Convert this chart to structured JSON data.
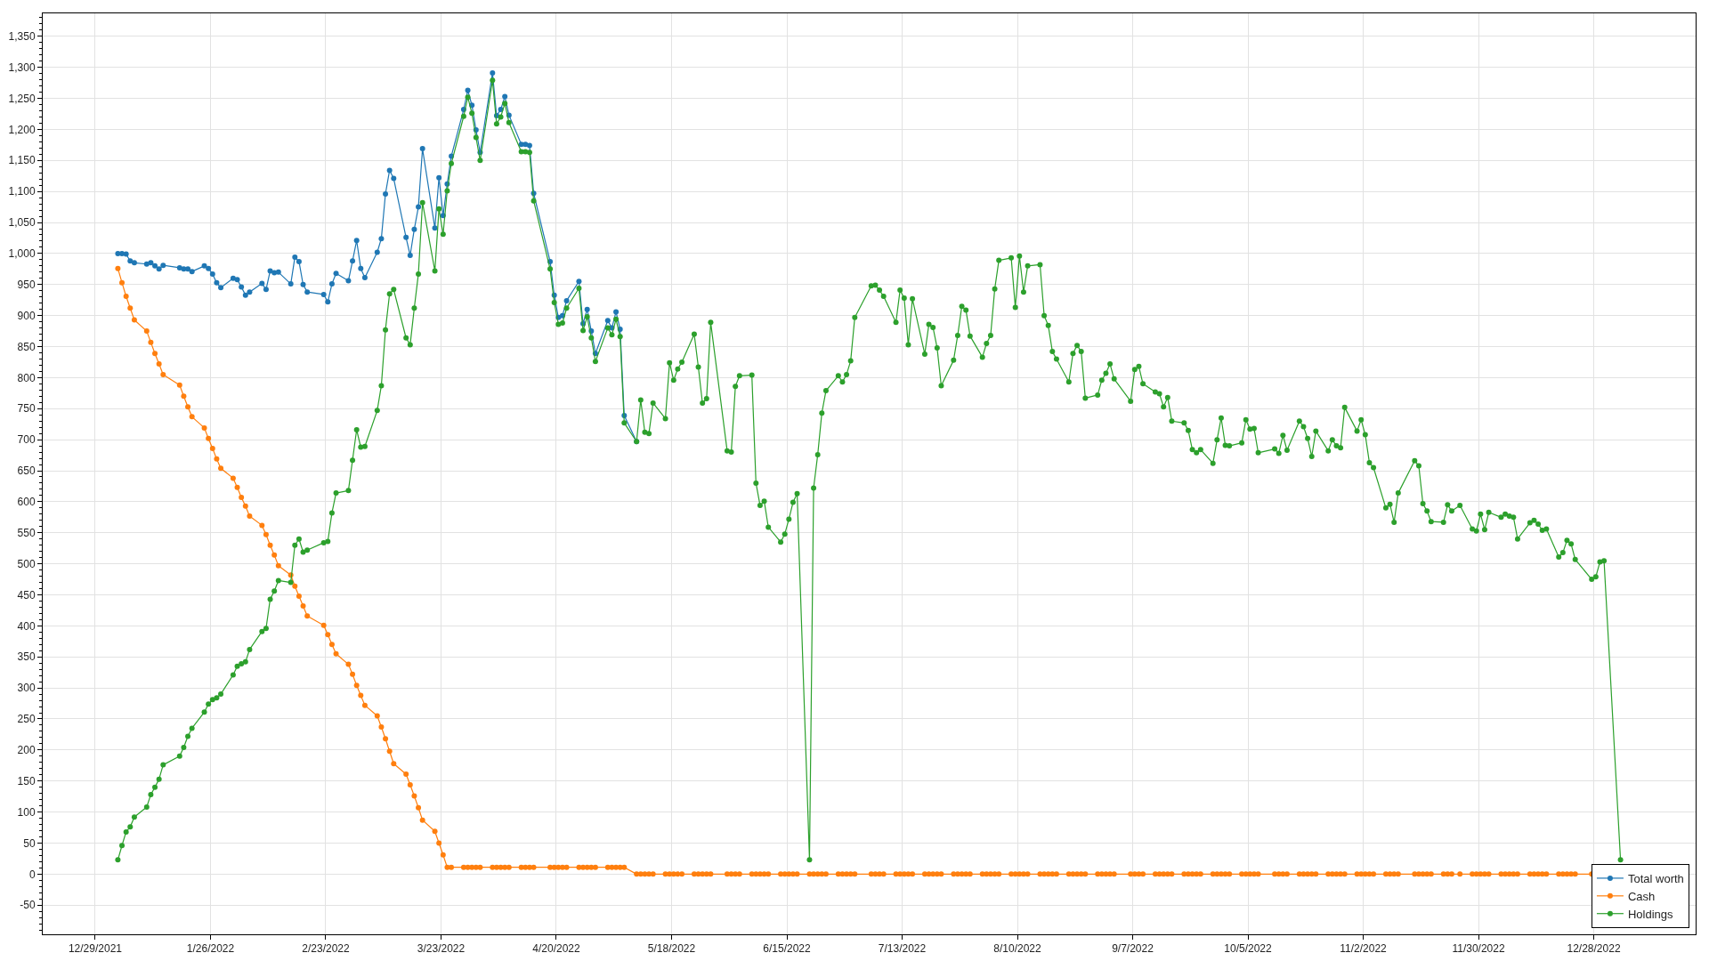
{
  "chart_data": {
    "type": "line",
    "x": [
      "2022-01-03T12:00",
      "2022-01-04T12:00",
      "2022-01-05T12:00",
      "2022-01-06T12:00",
      "2022-01-07T12:00",
      "2022-01-10T12:00",
      "2022-01-11T12:00",
      "2022-01-12T12:00",
      "2022-01-13T12:00",
      "2022-01-14T12:00",
      "2022-01-18T12:00",
      "2022-01-19T12:00",
      "2022-01-20T12:00",
      "2022-01-21T12:00",
      "2022-01-24T12:00",
      "2022-01-25T12:00",
      "2022-01-26T12:00",
      "2022-01-27T12:00",
      "2022-01-28T12:00",
      "2022-01-31T12:00",
      "2022-02-01T12:00",
      "2022-02-02T12:00",
      "2022-02-03T12:00",
      "2022-02-04T12:00",
      "2022-02-07T12:00",
      "2022-02-08T12:00",
      "2022-02-09T12:00",
      "2022-02-10T12:00",
      "2022-02-11T12:00",
      "2022-02-14T12:00",
      "2022-02-15T12:00",
      "2022-02-16T12:00",
      "2022-02-17T12:00",
      "2022-02-18T12:00",
      "2022-02-22T12:00",
      "2022-02-23T12:00",
      "2022-02-24T12:00",
      "2022-02-25T12:00",
      "2022-02-28T12:00",
      "2022-03-01T12:00",
      "2022-03-02T12:00",
      "2022-03-03T12:00",
      "2022-03-04T12:00",
      "2022-03-07T12:00",
      "2022-03-08T12:00",
      "2022-03-09T12:00",
      "2022-03-10T12:00",
      "2022-03-11T12:00",
      "2022-03-14T12:00",
      "2022-03-15T12:00",
      "2022-03-16T12:00",
      "2022-03-17T12:00",
      "2022-03-18T12:00",
      "2022-03-21T12:00",
      "2022-03-22T12:00",
      "2022-03-23T12:00",
      "2022-03-24T12:00",
      "2022-03-25T12:00",
      "2022-03-28T12:00",
      "2022-03-29T12:00",
      "2022-03-30T12:00",
      "2022-03-31T12:00",
      "2022-04-01T12:00",
      "2022-04-04T12:00",
      "2022-04-05T12:00",
      "2022-04-06T12:00",
      "2022-04-07T12:00",
      "2022-04-08T12:00",
      "2022-04-11T12:00",
      "2022-04-12T12:00",
      "2022-04-13T12:00",
      "2022-04-14T12:00",
      "2022-04-18T12:00",
      "2022-04-19T12:00",
      "2022-04-20T12:00",
      "2022-04-21T12:00",
      "2022-04-22T12:00",
      "2022-04-25T12:00",
      "2022-04-26T12:00",
      "2022-04-27T12:00",
      "2022-04-28T12:00",
      "2022-04-29T12:00",
      "2022-05-02T12:00",
      "2022-05-03T12:00",
      "2022-05-04T12:00",
      "2022-05-05T12:00",
      "2022-05-06T12:00",
      "2022-05-09T12:00",
      "2022-05-10T12:00",
      "2022-05-11T12:00",
      "2022-05-12T12:00",
      "2022-05-13T12:00",
      "2022-05-16T12:00",
      "2022-05-17T12:00",
      "2022-05-18T12:00",
      "2022-05-19T12:00",
      "2022-05-20T12:00",
      "2022-05-23T12:00",
      "2022-05-24T12:00",
      "2022-05-25T12:00",
      "2022-05-26T12:00",
      "2022-05-27T12:00",
      "2022-05-31T12:00",
      "2022-06-01T12:00",
      "2022-06-02T12:00",
      "2022-06-03T12:00",
      "2022-06-06T12:00",
      "2022-06-07T12:00",
      "2022-06-08T12:00",
      "2022-06-09T12:00",
      "2022-06-10T12:00",
      "2022-06-13T12:00",
      "2022-06-14T12:00",
      "2022-06-15T12:00",
      "2022-06-16T12:00",
      "2022-06-17T12:00",
      "2022-06-20T12:00",
      "2022-06-21T12:00",
      "2022-06-22T12:00",
      "2022-06-23T12:00",
      "2022-06-24T12:00",
      "2022-06-27T12:00",
      "2022-06-28T12:00",
      "2022-06-29T12:00",
      "2022-06-30T12:00",
      "2022-07-01T12:00",
      "2022-07-05T12:00",
      "2022-07-06T12:00",
      "2022-07-07T12:00",
      "2022-07-08T12:00",
      "2022-07-11T12:00",
      "2022-07-12T12:00",
      "2022-07-13T12:00",
      "2022-07-14T12:00",
      "2022-07-15T12:00",
      "2022-07-18T12:00",
      "2022-07-19T12:00",
      "2022-07-20T12:00",
      "2022-07-21T12:00",
      "2022-07-22T12:00",
      "2022-07-25T12:00",
      "2022-07-26T12:00",
      "2022-07-27T12:00",
      "2022-07-28T12:00",
      "2022-07-29T12:00",
      "2022-08-01T12:00",
      "2022-08-02T12:00",
      "2022-08-03T12:00",
      "2022-08-04T12:00",
      "2022-08-05T12:00",
      "2022-08-08T12:00",
      "2022-08-09T12:00",
      "2022-08-10T12:00",
      "2022-08-11T12:00",
      "2022-08-12T12:00",
      "2022-08-15T12:00",
      "2022-08-16T12:00",
      "2022-08-17T12:00",
      "2022-08-18T12:00",
      "2022-08-19T12:00",
      "2022-08-22T12:00",
      "2022-08-23T12:00",
      "2022-08-24T12:00",
      "2022-08-25T12:00",
      "2022-08-26T12:00",
      "2022-08-29T12:00",
      "2022-08-30T12:00",
      "2022-08-31T12:00",
      "2022-09-01T12:00",
      "2022-09-02T12:00",
      "2022-09-06T12:00",
      "2022-09-07T12:00",
      "2022-09-08T12:00",
      "2022-09-09T12:00",
      "2022-09-12T12:00",
      "2022-09-13T12:00",
      "2022-09-14T12:00",
      "2022-09-15T12:00",
      "2022-09-16T12:00",
      "2022-09-19T12:00",
      "2022-09-20T12:00",
      "2022-09-21T12:00",
      "2022-09-22T12:00",
      "2022-09-23T12:00",
      "2022-09-26T12:00",
      "2022-09-27T12:00",
      "2022-09-28T12:00",
      "2022-09-29T12:00",
      "2022-09-30T12:00",
      "2022-10-03T12:00",
      "2022-10-04T12:00",
      "2022-10-05T12:00",
      "2022-10-06T12:00",
      "2022-10-07T12:00",
      "2022-10-11T12:00",
      "2022-10-12T12:00",
      "2022-10-13T12:00",
      "2022-10-14T12:00",
      "2022-10-17T12:00",
      "2022-10-18T12:00",
      "2022-10-19T12:00",
      "2022-10-20T12:00",
      "2022-10-21T12:00",
      "2022-10-24T12:00",
      "2022-10-25T12:00",
      "2022-10-26T12:00",
      "2022-10-27T12:00",
      "2022-10-28T12:00",
      "2022-10-31T12:00",
      "2022-11-01T12:00",
      "2022-11-02T12:00",
      "2022-11-03T12:00",
      "2022-11-04T12:00",
      "2022-11-07T12:00",
      "2022-11-08T12:00",
      "2022-11-09T12:00",
      "2022-11-10T12:00",
      "2022-11-14T12:00",
      "2022-11-15T12:00",
      "2022-11-16T12:00",
      "2022-11-17T12:00",
      "2022-11-18T12:00",
      "2022-11-21T12:00",
      "2022-11-22T12:00",
      "2022-11-23T12:00",
      "2022-11-25T12:00",
      "2022-11-28T12:00",
      "2022-11-29T12:00",
      "2022-11-30T12:00",
      "2022-12-01T12:00",
      "2022-12-02T12:00",
      "2022-12-05T12:00",
      "2022-12-06T12:00",
      "2022-12-07T12:00",
      "2022-12-08T12:00",
      "2022-12-09T12:00",
      "2022-12-12T12:00",
      "2022-12-13T12:00",
      "2022-12-14T12:00",
      "2022-12-15T12:00",
      "2022-12-16T12:00",
      "2022-12-19T12:00",
      "2022-12-20T12:00",
      "2022-12-21T12:00",
      "2022-12-22T12:00",
      "2022-12-23T12:00",
      "2022-12-27T12:00",
      "2022-12-28T12:00",
      "2022-12-29T12:00",
      "2022-12-30T12:00",
      "2023-01-03T12:00"
    ],
    "series": [
      {
        "name": "Total worth",
        "color": "#1f77b4",
        "values": [
          1000,
          1000,
          999,
          988,
          985,
          983,
          985,
          980,
          975,
          981,
          977,
          975,
          975,
          971,
          980,
          976,
          967,
          953,
          945,
          960,
          958,
          946,
          933,
          938,
          952,
          942,
          972,
          969,
          970,
          951,
          994,
          987,
          950,
          938,
          934,
          922,
          951,
          968,
          956,
          988,
          1021,
          976,
          961,
          1002,
          1024,
          1096,
          1134,
          1121,
          1026,
          997,
          1039,
          1075,
          1169,
          1041,
          1122,
          1061,
          1112,
          1157,
          1232,
          1263,
          1239,
          1199,
          1163,
          1291,
          1222,
          1232,
          1253,
          1223,
          1176,
          1176,
          1174,
          1097,
          987,
          933,
          897,
          900,
          924,
          955,
          887,
          910,
          875,
          839,
          892,
          880,
          906,
          878,
          739,
          697,
          null,
          null,
          null,
          null,
          null,
          null,
          null,
          null,
          null,
          null,
          null,
          null,
          null,
          null,
          null,
          null,
          null,
          null,
          null,
          null,
          null,
          null,
          null,
          null,
          null,
          null,
          null,
          null,
          null,
          null,
          null,
          null,
          null,
          null,
          null,
          null,
          null,
          null,
          null,
          null,
          null,
          null,
          null,
          null,
          null,
          null,
          null,
          null,
          null,
          null,
          null,
          null,
          null,
          null,
          null,
          null,
          null,
          null,
          null,
          null,
          null,
          null,
          null,
          null,
          null,
          null,
          null,
          null,
          null,
          null,
          null,
          null,
          null,
          null,
          null,
          null,
          null,
          null,
          null,
          null,
          null,
          null,
          null,
          null,
          null,
          null,
          null,
          null,
          null,
          null,
          null,
          null,
          null,
          null,
          null,
          null,
          null,
          null,
          null,
          null,
          null,
          null,
          null,
          null,
          null,
          null,
          null,
          null,
          null,
          null,
          null,
          null,
          null,
          null,
          null,
          null,
          null,
          null,
          null,
          null,
          null,
          null,
          null,
          null,
          null,
          null,
          null,
          null,
          null,
          null,
          null,
          null,
          null,
          null,
          null,
          null,
          null,
          null,
          null,
          null,
          null,
          null,
          null,
          null,
          null,
          null,
          null,
          null,
          null,
          null,
          null,
          null,
          null,
          null,
          null,
          null,
          null,
          null,
          null,
          null,
          null,
          null,
          null
        ]
      },
      {
        "name": "Cash",
        "color": "#ff7f0e",
        "values": [
          976,
          953,
          931,
          912,
          893,
          875,
          857,
          839,
          822,
          805,
          788,
          770,
          753,
          737,
          719,
          702,
          686,
          669,
          654,
          638,
          623,
          607,
          593,
          577,
          562,
          547,
          530,
          514,
          497,
          482,
          464,
          448,
          432,
          416,
          401,
          386,
          370,
          355,
          338,
          322,
          304,
          288,
          272,
          255,
          237,
          218,
          198,
          178,
          161,
          144,
          126,
          107,
          87,
          69,
          50,
          31,
          11,
          11,
          11,
          11,
          11,
          11,
          11,
          11,
          11,
          11,
          11,
          11,
          11,
          11,
          11,
          11,
          11,
          11,
          11,
          11,
          11,
          11,
          11,
          11,
          11,
          11,
          11,
          11,
          11,
          11,
          11,
          0,
          0,
          0,
          0,
          0,
          0,
          0,
          0,
          0,
          0,
          0,
          0,
          0,
          0,
          0,
          0,
          0,
          0,
          0,
          0,
          0,
          0,
          0,
          0,
          0,
          0,
          0,
          0,
          0,
          0,
          0,
          0,
          0,
          0,
          0,
          0,
          0,
          0,
          0,
          0,
          0,
          0,
          0,
          0,
          0,
          0,
          0,
          0,
          0,
          0,
          0,
          0,
          0,
          0,
          0,
          0,
          0,
          0,
          0,
          0,
          0,
          0,
          0,
          0,
          0,
          0,
          0,
          0,
          0,
          0,
          0,
          0,
          0,
          0,
          0,
          0,
          0,
          0,
          0,
          0,
          0,
          0,
          0,
          0,
          0,
          0,
          0,
          0,
          0,
          0,
          0,
          0,
          0,
          0,
          0,
          0,
          0,
          0,
          0,
          0,
          0,
          0,
          0,
          0,
          0,
          0,
          0,
          0,
          0,
          0,
          0,
          0,
          0,
          0,
          0,
          0,
          0,
          0,
          0,
          0,
          0,
          0,
          0,
          0,
          0,
          0,
          0,
          0,
          0,
          0,
          0,
          0,
          0,
          0,
          0,
          0,
          0,
          0,
          0,
          0,
          0,
          0,
          0,
          0,
          0,
          0,
          0,
          0,
          0,
          0,
          0,
          0,
          0,
          0,
          0,
          0,
          0,
          0,
          0,
          0,
          null,
          null,
          null,
          null
        ]
      },
      {
        "name": "Holdings",
        "color": "#2ca02c",
        "values": [
          23,
          46,
          68,
          76,
          92,
          108,
          128,
          140,
          153,
          176,
          190,
          204,
          222,
          235,
          261,
          274,
          281,
          284,
          290,
          321,
          335,
          339,
          342,
          362,
          391,
          396,
          443,
          456,
          473,
          470,
          530,
          540,
          519,
          522,
          534,
          536,
          582,
          614,
          618,
          667,
          716,
          688,
          689,
          747,
          787,
          877,
          935,
          942,
          864,
          853,
          912,
          967,
          1082,
          972,
          1072,
          1031,
          1101,
          1145,
          1221,
          1252,
          1226,
          1187,
          1150,
          1279,
          1209,
          1220,
          1242,
          1211,
          1164,
          1164,
          1163,
          1085,
          975,
          921,
          886,
          888,
          912,
          944,
          876,
          898,
          864,
          826,
          880,
          869,
          894,
          866,
          727,
          697,
          764,
          712,
          710,
          759,
          734,
          824,
          796,
          814,
          825,
          870,
          817,
          759,
          766,
          889,
          682,
          680,
          786,
          803,
          804,
          630,
          594,
          601,
          559,
          535,
          548,
          572,
          599,
          613,
          23,
          622,
          676,
          743,
          779,
          803,
          793,
          805,
          827,
          897,
          948,
          949,
          941,
          931,
          889,
          941,
          928,
          853,
          927,
          838,
          886,
          881,
          848,
          787,
          828,
          868,
          915,
          909,
          867,
          833,
          855,
          868,
          943,
          989,
          993,
          913,
          996,
          938,
          980,
          982,
          900,
          884,
          842,
          830,
          793,
          839,
          852,
          842,
          767,
          772,
          796,
          807,
          822,
          798,
          762,
          813,
          818,
          790,
          777,
          774,
          753,
          768,
          730,
          727,
          715,
          684,
          679,
          684,
          662,
          700,
          735,
          691,
          690,
          695,
          732,
          717,
          718,
          679,
          685,
          678,
          707,
          683,
          730,
          721,
          702,
          673,
          714,
          682,
          700,
          690,
          687,
          752,
          714,
          732,
          708,
          663,
          655,
          590,
          596,
          567,
          614,
          666,
          658,
          597,
          585,
          568,
          567,
          595,
          585,
          594,
          556,
          553,
          580,
          555,
          583,
          575,
          580,
          577,
          575,
          540,
          566,
          570,
          564,
          554,
          556,
          511,
          518,
          538,
          532,
          507,
          475,
          479,
          503,
          505,
          23
        ]
      }
    ],
    "xlim": [
      "2021-12-16T06:00",
      "2023-01-21T18:00"
    ],
    "xticks": [
      {
        "value": "2021-12-29",
        "label": "12/29/2021"
      },
      {
        "value": "2022-01-26",
        "label": "1/26/2022"
      },
      {
        "value": "2022-02-23",
        "label": "2/23/2022"
      },
      {
        "value": "2022-03-23",
        "label": "3/23/2022"
      },
      {
        "value": "2022-04-20",
        "label": "4/20/2022"
      },
      {
        "value": "2022-05-18",
        "label": "5/18/2022"
      },
      {
        "value": "2022-06-15",
        "label": "6/15/2022"
      },
      {
        "value": "2022-07-13",
        "label": "7/13/2022"
      },
      {
        "value": "2022-08-10",
        "label": "8/10/2022"
      },
      {
        "value": "2022-09-07",
        "label": "9/7/2022"
      },
      {
        "value": "2022-10-05",
        "label": "10/5/2022"
      },
      {
        "value": "2022-11-02",
        "label": "11/2/2022"
      },
      {
        "value": "2022-11-30",
        "label": "11/30/2022"
      },
      {
        "value": "2022-12-28",
        "label": "12/28/2022"
      }
    ],
    "ylim": [
      -97,
      1387
    ],
    "yticks": [
      -50,
      0,
      50,
      100,
      150,
      200,
      250,
      300,
      350,
      400,
      450,
      500,
      550,
      600,
      650,
      700,
      750,
      800,
      850,
      900,
      950,
      {
        "value": 1000,
        "label": "1,000"
      },
      {
        "value": 1050,
        "label": "1,050"
      },
      {
        "value": 1100,
        "label": "1,100"
      },
      {
        "value": 1150,
        "label": "1,150"
      },
      {
        "value": 1200,
        "label": "1,200"
      },
      {
        "value": 1250,
        "label": "1,250"
      },
      {
        "value": 1300,
        "label": "1,300"
      },
      {
        "value": 1350,
        "label": "1,350"
      },
      {
        "value": -90,
        "label": null
      },
      {
        "value": -80,
        "label": null
      },
      {
        "value": -70,
        "label": null
      },
      {
        "value": -60,
        "label": null
      },
      {
        "value": -40,
        "label": null
      },
      {
        "value": -30,
        "label": null
      },
      {
        "value": -20,
        "label": null
      },
      {
        "value": -10,
        "label": null
      },
      {
        "value": 10,
        "label": null
      },
      {
        "value": 20,
        "label": null
      },
      {
        "value": 30,
        "label": null
      },
      {
        "value": 40,
        "label": null
      },
      {
        "value": 60,
        "label": null
      },
      {
        "value": 70,
        "label": null
      },
      {
        "value": 80,
        "label": null
      },
      {
        "value": 90,
        "label": null
      },
      {
        "value": 110,
        "label": null
      },
      {
        "value": 120,
        "label": null
      },
      {
        "value": 130,
        "label": null
      },
      {
        "value": 140,
        "label": null
      },
      {
        "value": 160,
        "label": null
      },
      {
        "value": 170,
        "label": null
      },
      {
        "value": 180,
        "label": null
      },
      {
        "value": 190,
        "label": null
      },
      {
        "value": 210,
        "label": null
      },
      {
        "value": 220,
        "label": null
      },
      {
        "value": 230,
        "label": null
      },
      {
        "value": 240,
        "label": null
      },
      {
        "value": 260,
        "label": null
      },
      {
        "value": 270,
        "label": null
      },
      {
        "value": 280,
        "label": null
      },
      {
        "value": 290,
        "label": null
      },
      {
        "value": 310,
        "label": null
      },
      {
        "value": 320,
        "label": null
      },
      {
        "value": 330,
        "label": null
      },
      {
        "value": 340,
        "label": null
      },
      {
        "value": 360,
        "label": null
      },
      {
        "value": 370,
        "label": null
      },
      {
        "value": 380,
        "label": null
      },
      {
        "value": 390,
        "label": null
      },
      {
        "value": 410,
        "label": null
      },
      {
        "value": 420,
        "label": null
      },
      {
        "value": 430,
        "label": null
      },
      {
        "value": 440,
        "label": null
      },
      {
        "value": 460,
        "label": null
      },
      {
        "value": 470,
        "label": null
      },
      {
        "value": 480,
        "label": null
      },
      {
        "value": 490,
        "label": null
      },
      {
        "value": 510,
        "label": null
      },
      {
        "value": 520,
        "label": null
      },
      {
        "value": 530,
        "label": null
      },
      {
        "value": 540,
        "label": null
      },
      {
        "value": 560,
        "label": null
      },
      {
        "value": 570,
        "label": null
      },
      {
        "value": 580,
        "label": null
      },
      {
        "value": 590,
        "label": null
      },
      {
        "value": 610,
        "label": null
      },
      {
        "value": 620,
        "label": null
      },
      {
        "value": 630,
        "label": null
      },
      {
        "value": 640,
        "label": null
      },
      {
        "value": 660,
        "label": null
      },
      {
        "value": 670,
        "label": null
      },
      {
        "value": 680,
        "label": null
      },
      {
        "value": 690,
        "label": null
      },
      {
        "value": 710,
        "label": null
      },
      {
        "value": 720,
        "label": null
      },
      {
        "value": 730,
        "label": null
      },
      {
        "value": 740,
        "label": null
      },
      {
        "value": 760,
        "label": null
      },
      {
        "value": 770,
        "label": null
      },
      {
        "value": 780,
        "label": null
      },
      {
        "value": 790,
        "label": null
      },
      {
        "value": 810,
        "label": null
      },
      {
        "value": 820,
        "label": null
      },
      {
        "value": 830,
        "label": null
      },
      {
        "value": 840,
        "label": null
      },
      {
        "value": 860,
        "label": null
      },
      {
        "value": 870,
        "label": null
      },
      {
        "value": 880,
        "label": null
      },
      {
        "value": 890,
        "label": null
      },
      {
        "value": 910,
        "label": null
      },
      {
        "value": 920,
        "label": null
      },
      {
        "value": 930,
        "label": null
      },
      {
        "value": 940,
        "label": null
      },
      {
        "value": 960,
        "label": null
      },
      {
        "value": 970,
        "label": null
      },
      {
        "value": 980,
        "label": null
      },
      {
        "value": 990,
        "label": null
      },
      {
        "value": 1010,
        "label": null
      },
      {
        "value": 1020,
        "label": null
      },
      {
        "value": 1030,
        "label": null
      },
      {
        "value": 1040,
        "label": null
      },
      {
        "value": 1060,
        "label": null
      },
      {
        "value": 1070,
        "label": null
      },
      {
        "value": 1080,
        "label": null
      },
      {
        "value": 1090,
        "label": null
      },
      {
        "value": 1110,
        "label": null
      },
      {
        "value": 1120,
        "label": null
      },
      {
        "value": 1130,
        "label": null
      },
      {
        "value": 1140,
        "label": null
      },
      {
        "value": 1160,
        "label": null
      },
      {
        "value": 1170,
        "label": null
      },
      {
        "value": 1180,
        "label": null
      },
      {
        "value": 1190,
        "label": null
      },
      {
        "value": 1210,
        "label": null
      },
      {
        "value": 1220,
        "label": null
      },
      {
        "value": 1230,
        "label": null
      },
      {
        "value": 1240,
        "label": null
      },
      {
        "value": 1260,
        "label": null
      },
      {
        "value": 1270,
        "label": null
      },
      {
        "value": 1280,
        "label": null
      },
      {
        "value": 1290,
        "label": null
      },
      {
        "value": 1310,
        "label": null
      },
      {
        "value": 1320,
        "label": null
      },
      {
        "value": 1330,
        "label": null
      },
      {
        "value": 1340,
        "label": null
      },
      {
        "value": 1360,
        "label": null
      },
      {
        "value": 1370,
        "label": null
      },
      {
        "value": 1380,
        "label": null
      }
    ],
    "grid": true,
    "legend": "bottom right",
    "marker": "circle",
    "line_style": "solid"
  }
}
